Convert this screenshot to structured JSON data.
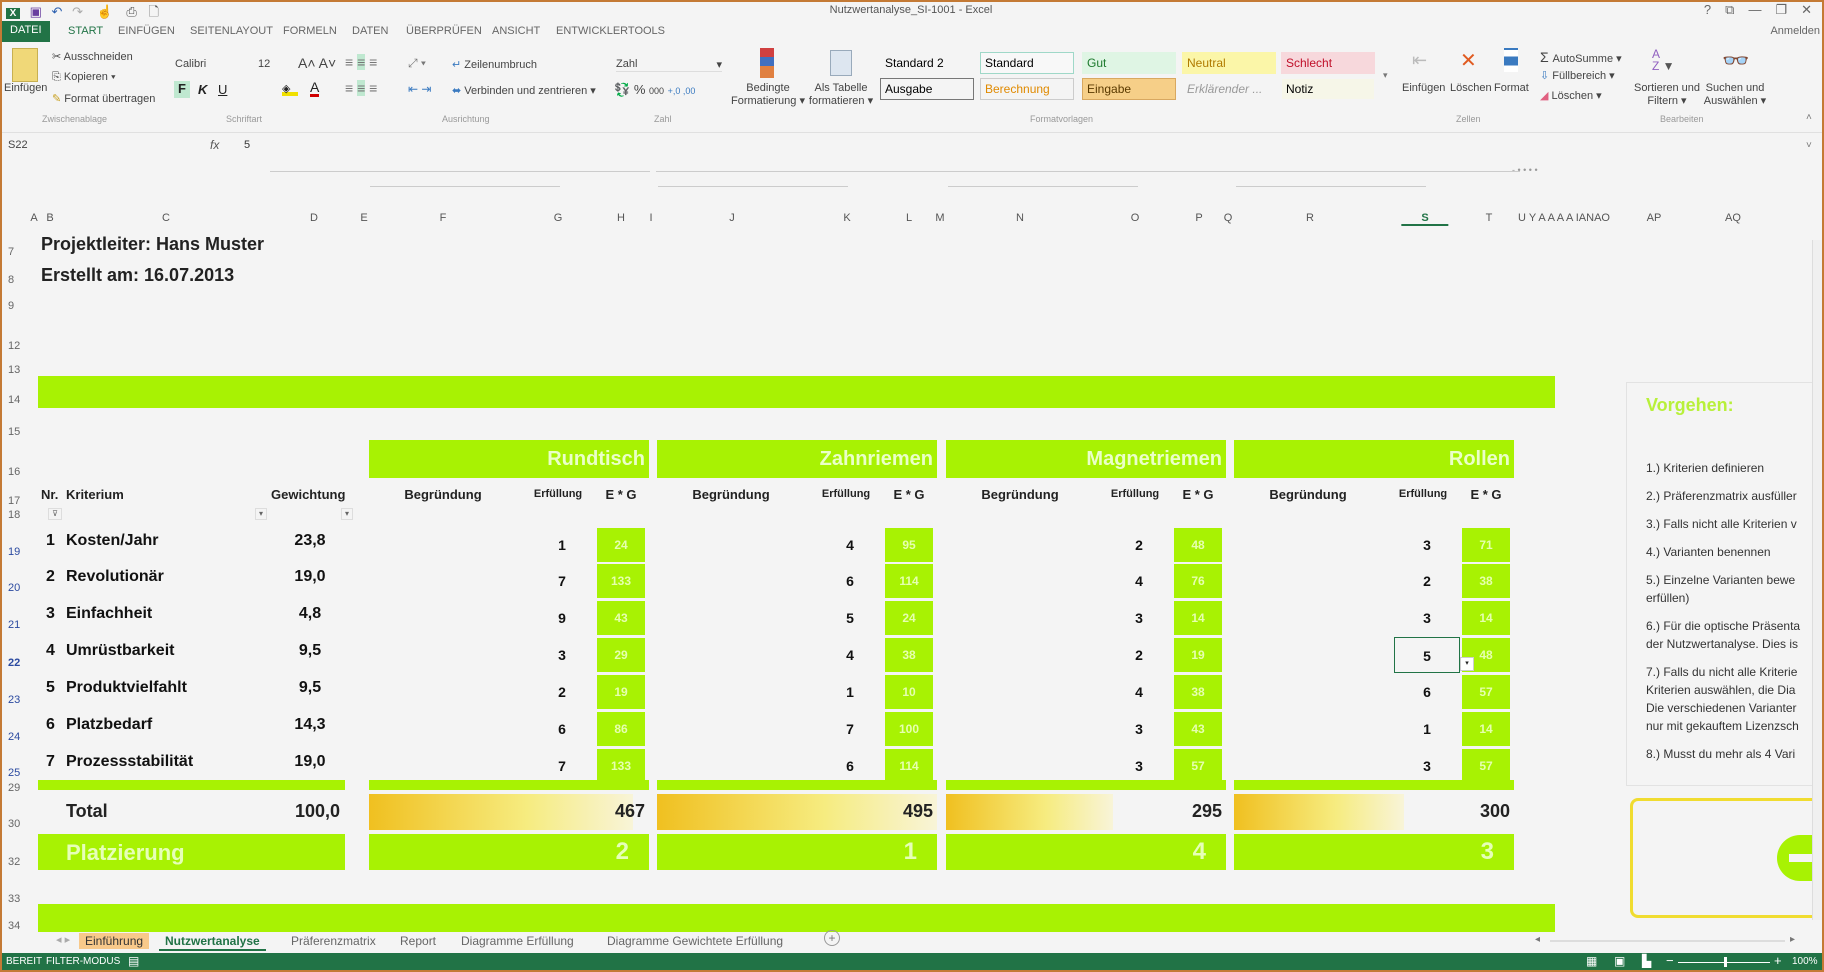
{
  "window": {
    "title": "Nutzwertanalyse_SI-1001 - Excel",
    "account": "Anmelden",
    "controls": [
      "?",
      "⧉",
      "—",
      "❐",
      "✕"
    ]
  },
  "ribbon": {
    "tabs": [
      "DATEI",
      "START",
      "EINFÜGEN",
      "SEITENLAYOUT",
      "FORMELN",
      "DATEN",
      "ÜBERPRÜFEN",
      "ANSICHT",
      "ENTWICKLERTOOLS"
    ],
    "active_tab": "START",
    "clipboard": {
      "paste": "Einfügen",
      "cut": "Ausschneiden",
      "copy": "Kopieren",
      "format_painter": "Format übertragen",
      "group": "Zwischenablage"
    },
    "font": {
      "name": "Calibri",
      "size": "12",
      "bold": "F",
      "italic": "K",
      "underline": "U",
      "group": "Schriftart"
    },
    "alignment": {
      "wrap": "Zeilenumbruch",
      "merge": "Verbinden und zentrieren",
      "group": "Ausrichtung"
    },
    "number": {
      "format": "Zahl",
      "percent": "%",
      "thousands": "000",
      "group": "Zahl"
    },
    "conditional": {
      "line1": "Bedingte",
      "line2": "Formatierung"
    },
    "as_table": {
      "line1": "Als Tabelle",
      "line2": "formatieren"
    },
    "styles": {
      "items": [
        {
          "label": "Standard 2",
          "bg": "#f4f4f4",
          "color": "#000000",
          "border": "#f4f4f4"
        },
        {
          "label": "Standard",
          "bg": "#f8f8f8",
          "color": "#000000",
          "border": "#9fd8c8"
        },
        {
          "label": "Gut",
          "bg": "#dff5e4",
          "color": "#1e7a2e",
          "border": "#dff5e4"
        },
        {
          "label": "Neutral",
          "bg": "#fbf6a8",
          "color": "#b07a00",
          "border": "#fbf6a8"
        },
        {
          "label": "Schlecht",
          "bg": "#f7d8dc",
          "color": "#c0102a",
          "border": "#f7d8dc"
        },
        {
          "label": "Ausgabe",
          "bg": "#f4f4f4",
          "color": "#000000",
          "border": "#777777"
        },
        {
          "label": "Berechnung",
          "bg": "#f4f4f4",
          "color": "#e08a00",
          "border": "#cccccc"
        },
        {
          "label": "Eingabe",
          "bg": "#f6cf88",
          "color": "#5a3a00",
          "border": "#d8a860"
        },
        {
          "label": "Erklärender ...",
          "bg": "#f4f4f4",
          "color": "#999999",
          "border": "#f4f4f4"
        },
        {
          "label": "Notiz",
          "bg": "#f6f6e8",
          "color": "#000000",
          "border": "#f4f4f4"
        }
      ],
      "group": "Formatvorlagen"
    },
    "cells": {
      "insert": "Einfügen",
      "delete": "Löschen",
      "format": "Format",
      "group": "Zellen"
    },
    "editing": {
      "autosum": "AutoSumme",
      "fill": "Füllbereich",
      "clear": "Löschen",
      "sort_l1": "Sortieren und",
      "sort_l2": "Filtern",
      "find_l1": "Suchen und",
      "find_l2": "Auswählen",
      "group": "Bearbeiten"
    }
  },
  "formula_bar": {
    "name_box": "S22",
    "fx": "fx",
    "value": "5"
  },
  "columns": [
    "A",
    "B",
    "C",
    "D",
    "E",
    "F",
    "G",
    "H",
    "I",
    "J",
    "K",
    "L",
    "M",
    "N",
    "O",
    "P",
    "Q",
    "R",
    "S",
    "T",
    "U Y A A A A IANAO",
    "AP",
    "AQ"
  ],
  "selected_column": "S",
  "rows": [
    "7",
    "8",
    "9",
    "12",
    "13",
    "14",
    "15",
    "16",
    "17",
    "18",
    "19",
    "20",
    "21",
    "22",
    "23",
    "24",
    "25",
    "29",
    "30",
    "32",
    "33",
    "34"
  ],
  "selected_row": "22",
  "sheet": {
    "project_lead": "Projektleiter: Hans Muster",
    "created": "Erstellt am: 16.07.2013",
    "headers": {
      "nr": "Nr.",
      "criterion": "Kriterium",
      "weight": "Gewichtung",
      "reason": "Begründung",
      "fulfillment": "Erfüllung",
      "eg": "E * G"
    },
    "criteria": [
      {
        "nr": "1",
        "name": "Kosten/Jahr",
        "weight": "23,8"
      },
      {
        "nr": "2",
        "name": "Revolutionär",
        "weight": "19,0"
      },
      {
        "nr": "3",
        "name": "Einfachheit",
        "weight": "4,8"
      },
      {
        "nr": "4",
        "name": "Umrüstbarkeit",
        "weight": "9,5"
      },
      {
        "nr": "5",
        "name": "Produktvielfahlt",
        "weight": "9,5"
      },
      {
        "nr": "6",
        "name": "Platzbedarf",
        "weight": "14,3"
      },
      {
        "nr": "7",
        "name": "Prozessstabilität",
        "weight": "19,0"
      }
    ],
    "variants": [
      {
        "name": "Rundtisch",
        "fulfillment": [
          "1",
          "7",
          "9",
          "3",
          "2",
          "6",
          "7"
        ],
        "eg": [
          "24",
          "133",
          "43",
          "29",
          "19",
          "86",
          "133"
        ],
        "total": 467,
        "rank": "2"
      },
      {
        "name": "Zahnriemen",
        "fulfillment": [
          "4",
          "6",
          "5",
          "4",
          "1",
          "7",
          "6"
        ],
        "eg": [
          "95",
          "114",
          "24",
          "38",
          "10",
          "100",
          "114"
        ],
        "total": 495,
        "rank": "1"
      },
      {
        "name": "Magnetriemen",
        "fulfillment": [
          "2",
          "4",
          "3",
          "2",
          "4",
          "3",
          "3"
        ],
        "eg": [
          "48",
          "76",
          "14",
          "19",
          "38",
          "43",
          "57"
        ],
        "total": 295,
        "rank": "4"
      },
      {
        "name": "Rollen",
        "fulfillment": [
          "3",
          "2",
          "3",
          "5",
          "6",
          "1",
          "3"
        ],
        "eg": [
          "71",
          "38",
          "14",
          "48",
          "57",
          "14",
          "57"
        ],
        "total": 300,
        "rank": "3"
      }
    ],
    "total_label": "Total",
    "total_weight": "100,0",
    "placement_label": "Platzierung",
    "accent": "#a8f203"
  },
  "procedure": {
    "title": "Vorgehen:",
    "steps": [
      "1.) Kriterien definieren",
      "2.) Präferenzmatrix ausfüller",
      "3.) Falls nicht alle Kriterien v",
      "4.) Varianten benennen",
      "5.) Einzelne Varianten bewe",
      "erfüllen)",
      "6.) Für die optische Präsenta",
      "der Nutzwertanalyse. Dies is",
      "7.) Falls du nicht alle Kriterie",
      "Kriterien auswählen, die Dia",
      "Die verschiedenen Varianter",
      "nur mit gekauftem Lizenzsch",
      "8.) Musst du mehr als 4 Vari"
    ]
  },
  "sheet_tabs": [
    "Einführung",
    "Nutzwertanalyse",
    "Präferenzmatrix",
    "Report",
    "Diagramme Erfüllung",
    "Diagramme Gewichtete Erfüllung"
  ],
  "active_sheet": "Nutzwertanalyse",
  "status": {
    "ready": "BEREIT",
    "filter": "FILTER-MODUS",
    "zoom": "100%",
    "zoom_level": 100
  }
}
